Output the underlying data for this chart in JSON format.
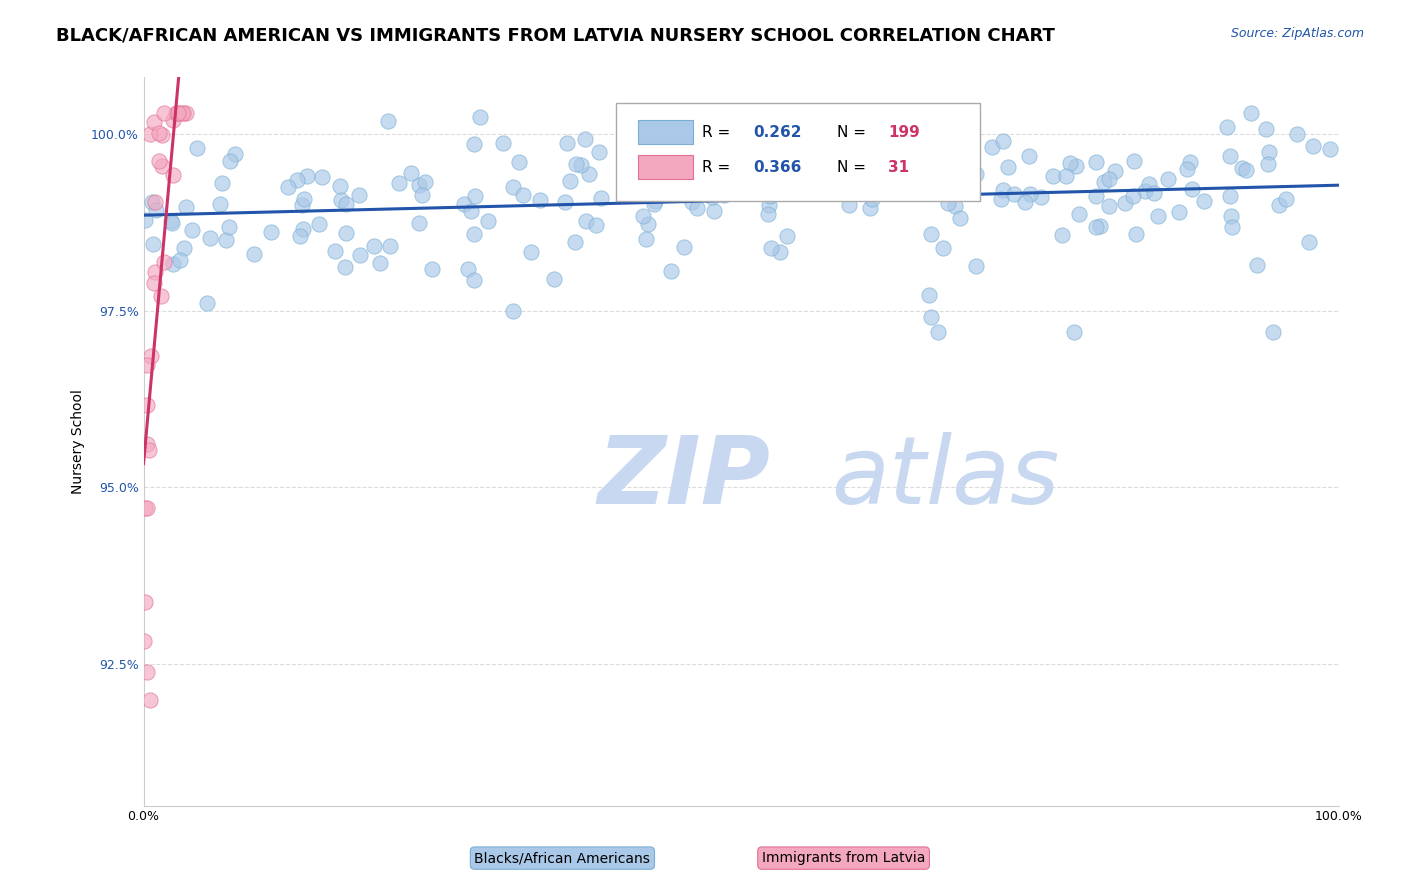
{
  "title": "BLACK/AFRICAN AMERICAN VS IMMIGRANTS FROM LATVIA NURSERY SCHOOL CORRELATION CHART",
  "source": "Source: ZipAtlas.com",
  "ylabel": "Nursery School",
  "xlabel": "",
  "blue_R": 0.262,
  "blue_N": 199,
  "pink_R": 0.366,
  "pink_N": 31,
  "blue_color": "#aac8e8",
  "blue_edge": "#7aafd4",
  "pink_color": "#f4a8c0",
  "pink_edge": "#e07090",
  "blue_line_color": "#2255aa",
  "pink_line_color": "#cc3366",
  "legend_R_color": "#2255aa",
  "legend_N_color": "#cc3366",
  "watermark_zip": "ZIP",
  "watermark_atlas": "atlas",
  "watermark_color": "#c8d8f0",
  "xlim": [
    0.0,
    1.0
  ],
  "ylim": [
    0.905,
    1.008
  ],
  "yticks": [
    0.925,
    0.95,
    0.975,
    1.0
  ],
  "ytick_labels": [
    "92.5%",
    "95.0%",
    "97.5%",
    "100.0%"
  ],
  "xticks": [
    0.0,
    0.1,
    0.2,
    0.3,
    0.4,
    0.5,
    0.6,
    0.7,
    0.8,
    0.9,
    1.0
  ],
  "xtick_labels": [
    "0.0%",
    "",
    "",
    "",
    "",
    "",
    "",
    "",
    "",
    "",
    "100.0%"
  ],
  "grid_color": "#cccccc",
  "legend_label_blue": "Blacks/African Americans",
  "legend_label_pink": "Immigrants from Latvia",
  "title_fontsize": 13,
  "axis_label_fontsize": 10,
  "tick_fontsize": 9,
  "source_fontsize": 9
}
